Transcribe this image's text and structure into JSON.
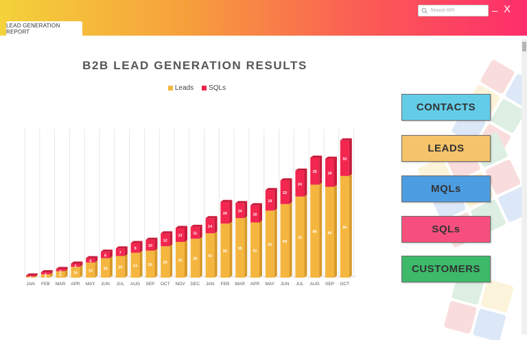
{
  "tab": {
    "label": "LEAD GENERATION REPORT"
  },
  "search": {
    "placeholder": "Search KPI"
  },
  "window": {
    "minimize": "_",
    "close": "X"
  },
  "colors": {
    "leads": "#f5b63f",
    "leads_dark": "#d89a2a",
    "sqls": "#f2264f",
    "sqls_dark": "#c81b3c",
    "contacts": "#63cde8",
    "leads_btn": "#f5c36a",
    "mqls": "#4d9de2",
    "sqls_btn": "#f74f7d",
    "customers": "#3cba6a"
  },
  "nav": {
    "contacts": "CONTACTS",
    "leads": "LEADS",
    "mqls": "MQLs",
    "sqls": "SQLs",
    "customers": "CUSTOMERS"
  },
  "chart_data": {
    "type": "bar",
    "stacked": true,
    "title": "B2B LEAD GENERATION RESULTS",
    "legend_position": "top",
    "grid": true,
    "categories": [
      "JAN",
      "FEB",
      "MAR",
      "APR",
      "MAY",
      "JUN",
      "JUL",
      "AUG",
      "SEP",
      "OCT",
      "NOV",
      "DEC",
      "JAN",
      "FEB",
      "MAR",
      "APR",
      "MAY",
      "JUN",
      "JUL",
      "AUG",
      "SEP",
      "OCT"
    ],
    "series": [
      {
        "name": "Leads",
        "values": [
          1,
          3,
          6,
          10,
          14,
          18,
          20,
          23,
          25,
          29,
          33,
          36,
          41,
          50,
          55,
          51,
          62,
          68,
          75,
          86,
          84,
          94
        ]
      },
      {
        "name": "SQLs",
        "values": [
          1,
          2,
          2,
          3,
          4,
          6,
          7,
          9,
          10,
          12,
          13,
          11,
          14,
          20,
          14,
          16,
          19,
          22,
          24,
          25,
          26,
          33
        ]
      }
    ]
  }
}
